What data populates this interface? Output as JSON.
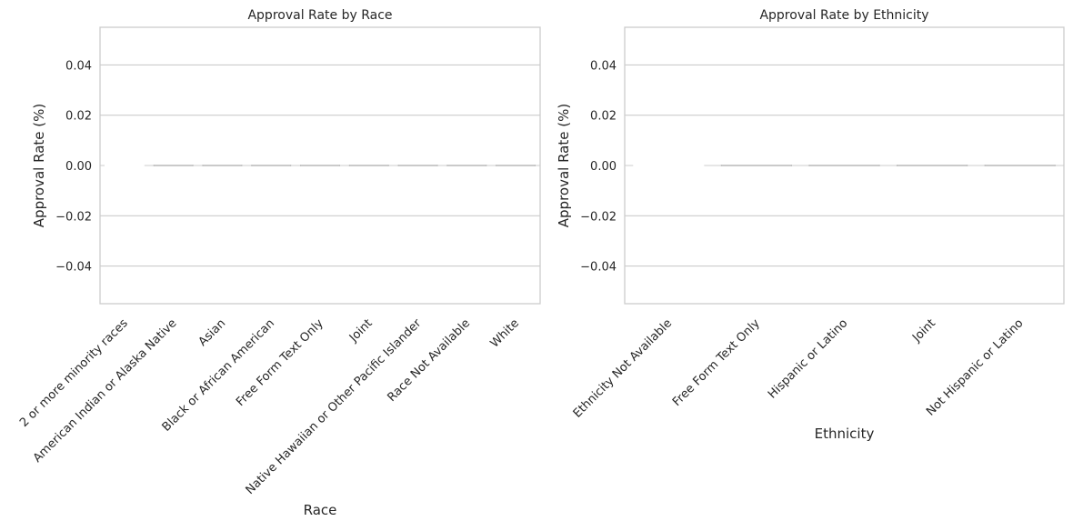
{
  "chart_data": [
    {
      "type": "bar",
      "title": "Approval Rate by Race",
      "xlabel": "Race",
      "ylabel": "Approval Rate (%)",
      "categories": [
        "2 or more minority races",
        "American Indian or Alaska Native",
        "Asian",
        "Black or African American",
        "Free Form Text Only",
        "Joint",
        "Native Hawaiian or Other Pacific Islander",
        "Race Not Available",
        "White"
      ],
      "values": [
        0,
        0,
        0,
        0,
        0,
        0,
        0,
        0,
        0
      ],
      "ylim": [
        -0.055,
        0.055
      ],
      "yticks": [
        -0.04,
        -0.02,
        0.0,
        0.02,
        0.04
      ],
      "ytick_labels": [
        "−0.04",
        "−0.02",
        "0.00",
        "0.02",
        "0.04"
      ],
      "grid": true
    },
    {
      "type": "bar",
      "title": "Approval Rate by Ethnicity",
      "xlabel": "Ethnicity",
      "ylabel": "Approval Rate (%)",
      "categories": [
        "Ethnicity Not Available",
        "Free Form Text Only",
        "Hispanic or Latino",
        "Joint",
        "Not Hispanic or Latino"
      ],
      "values": [
        0,
        0,
        0,
        0,
        0
      ],
      "ylim": [
        -0.055,
        0.055
      ],
      "yticks": [
        -0.04,
        -0.02,
        0.0,
        0.02,
        0.04
      ],
      "ytick_labels": [
        "−0.04",
        "−0.02",
        "0.00",
        "0.02",
        "0.04"
      ],
      "grid": true
    }
  ],
  "colors": {
    "grid": "#cccccc",
    "spine": "#cccccc",
    "text": "#262626",
    "bar_edge": "#bdbdbd"
  }
}
